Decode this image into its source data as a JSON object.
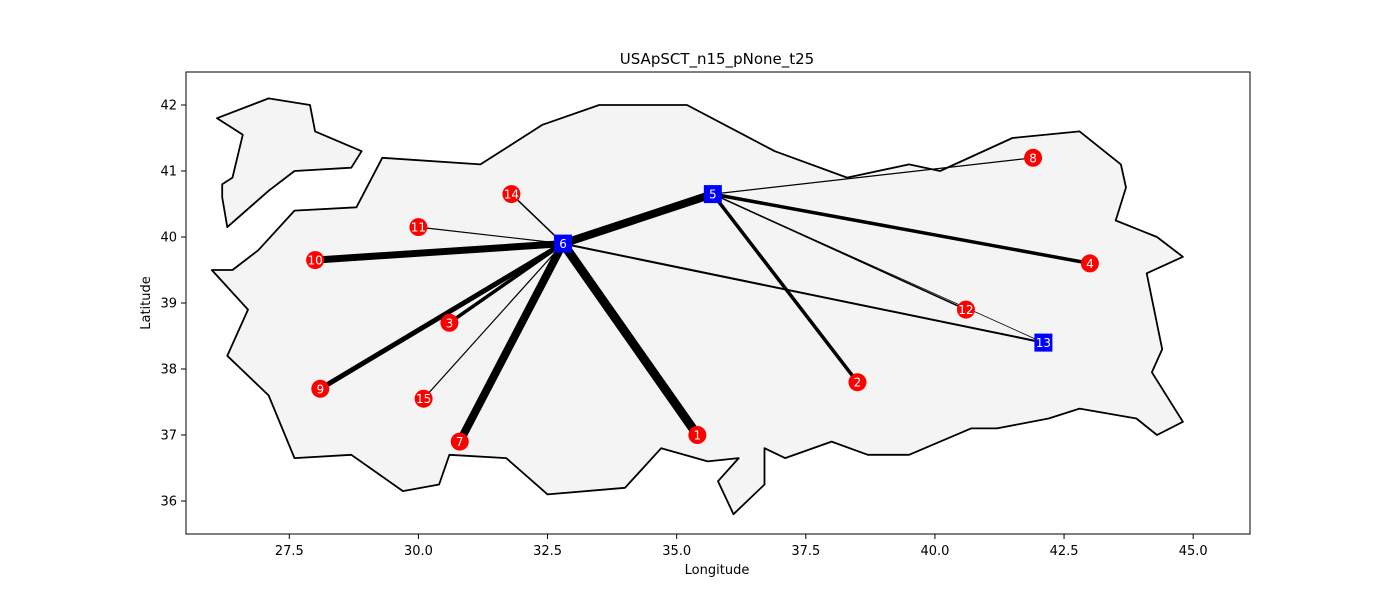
{
  "chart_data": {
    "type": "scatter",
    "title": "USApSCT_n15_pNone_t25",
    "xlabel": "Longitude",
    "ylabel": "Latitude",
    "xlim": [
      25.5,
      46.1
    ],
    "ylim": [
      35.5,
      42.5
    ],
    "xticks": [
      27.5,
      30.0,
      32.5,
      35.0,
      37.5,
      40.0,
      42.5,
      45.0
    ],
    "yticks": [
      36,
      37,
      38,
      39,
      40,
      41,
      42
    ],
    "grid": false,
    "legend": "none",
    "colors": {
      "hub": "#0000ff",
      "node": "#ff0000",
      "edge": "#000000",
      "land_fill": "#f4f4f4",
      "land_stroke": "#000000"
    },
    "outline": [
      [
        26.1,
        41.8
      ],
      [
        27.1,
        42.1
      ],
      [
        27.9,
        42.0
      ],
      [
        28.0,
        41.6
      ],
      [
        28.9,
        41.3
      ],
      [
        28.7,
        41.05
      ],
      [
        27.6,
        41.0
      ],
      [
        27.1,
        40.7
      ],
      [
        26.3,
        40.15
      ],
      [
        26.2,
        40.6
      ],
      [
        26.2,
        40.8
      ],
      [
        26.4,
        40.9
      ],
      [
        26.6,
        41.55
      ],
      [
        26.1,
        41.8
      ]
    ],
    "outline_main": [
      [
        29.3,
        41.2
      ],
      [
        31.2,
        41.1
      ],
      [
        32.4,
        41.7
      ],
      [
        33.5,
        42.0
      ],
      [
        35.2,
        42.0
      ],
      [
        36.9,
        41.3
      ],
      [
        38.3,
        40.9
      ],
      [
        39.5,
        41.1
      ],
      [
        40.1,
        41.0
      ],
      [
        41.5,
        41.5
      ],
      [
        42.8,
        41.6
      ],
      [
        43.6,
        41.1
      ],
      [
        43.7,
        40.75
      ],
      [
        43.5,
        40.25
      ],
      [
        44.3,
        40.0
      ],
      [
        44.8,
        39.7
      ],
      [
        44.1,
        39.45
      ],
      [
        44.4,
        38.3
      ],
      [
        44.2,
        37.95
      ],
      [
        44.8,
        37.2
      ],
      [
        44.3,
        37.0
      ],
      [
        43.9,
        37.25
      ],
      [
        42.8,
        37.4
      ],
      [
        42.2,
        37.25
      ],
      [
        41.2,
        37.1
      ],
      [
        40.7,
        37.1
      ],
      [
        39.5,
        36.7
      ],
      [
        38.7,
        36.7
      ],
      [
        38.0,
        36.9
      ],
      [
        37.1,
        36.65
      ],
      [
        36.7,
        36.8
      ],
      [
        36.7,
        36.25
      ],
      [
        36.1,
        35.8
      ],
      [
        35.8,
        36.3
      ],
      [
        36.2,
        36.65
      ],
      [
        35.6,
        36.6
      ],
      [
        34.7,
        36.8
      ],
      [
        34.0,
        36.2
      ],
      [
        32.5,
        36.1
      ],
      [
        31.7,
        36.65
      ],
      [
        30.6,
        36.7
      ],
      [
        30.4,
        36.25
      ],
      [
        29.7,
        36.15
      ],
      [
        28.7,
        36.7
      ],
      [
        27.6,
        36.65
      ],
      [
        27.1,
        37.6
      ],
      [
        26.3,
        38.2
      ],
      [
        26.7,
        38.9
      ],
      [
        26.0,
        39.5
      ],
      [
        26.4,
        39.5
      ],
      [
        26.9,
        39.8
      ],
      [
        27.6,
        40.4
      ],
      [
        28.8,
        40.45
      ],
      [
        29.3,
        41.2
      ]
    ],
    "nodes": [
      {
        "id": "1",
        "x": 35.4,
        "y": 37.0,
        "type": "node"
      },
      {
        "id": "2",
        "x": 38.5,
        "y": 37.8,
        "type": "node"
      },
      {
        "id": "3",
        "x": 30.6,
        "y": 38.7,
        "type": "node"
      },
      {
        "id": "4",
        "x": 43.0,
        "y": 39.6,
        "type": "node"
      },
      {
        "id": "5",
        "x": 35.7,
        "y": 40.65,
        "type": "hub"
      },
      {
        "id": "6",
        "x": 32.8,
        "y": 39.9,
        "type": "hub"
      },
      {
        "id": "7",
        "x": 30.8,
        "y": 36.9,
        "type": "node"
      },
      {
        "id": "8",
        "x": 41.9,
        "y": 41.2,
        "type": "node"
      },
      {
        "id": "9",
        "x": 28.1,
        "y": 37.7,
        "type": "node"
      },
      {
        "id": "10",
        "x": 28.0,
        "y": 39.65,
        "type": "node"
      },
      {
        "id": "11",
        "x": 30.0,
        "y": 40.15,
        "type": "node"
      },
      {
        "id": "12",
        "x": 40.6,
        "y": 38.9,
        "type": "node"
      },
      {
        "id": "13",
        "x": 42.1,
        "y": 38.4,
        "type": "hub"
      },
      {
        "id": "14",
        "x": 31.8,
        "y": 40.65,
        "type": "node"
      },
      {
        "id": "15",
        "x": 30.1,
        "y": 37.55,
        "type": "node"
      }
    ],
    "edges": [
      {
        "from": "6",
        "to": "5",
        "width": 8
      },
      {
        "from": "6",
        "to": "10",
        "width": 7
      },
      {
        "from": "6",
        "to": "1",
        "width": 9
      },
      {
        "from": "6",
        "to": "7",
        "width": 8
      },
      {
        "from": "6",
        "to": "9",
        "width": 5
      },
      {
        "from": "6",
        "to": "3",
        "width": 3.5
      },
      {
        "from": "6",
        "to": "15",
        "width": 1.2
      },
      {
        "from": "6",
        "to": "11",
        "width": 1.2
      },
      {
        "from": "6",
        "to": "14",
        "width": 1.5
      },
      {
        "from": "6",
        "to": "13",
        "width": 2
      },
      {
        "from": "5",
        "to": "4",
        "width": 3.5
      },
      {
        "from": "5",
        "to": "2",
        "width": 3.5
      },
      {
        "from": "5",
        "to": "8",
        "width": 1.2
      },
      {
        "from": "5",
        "to": "12",
        "width": 1.5
      },
      {
        "from": "5",
        "to": "13",
        "width": 0.8
      }
    ]
  }
}
